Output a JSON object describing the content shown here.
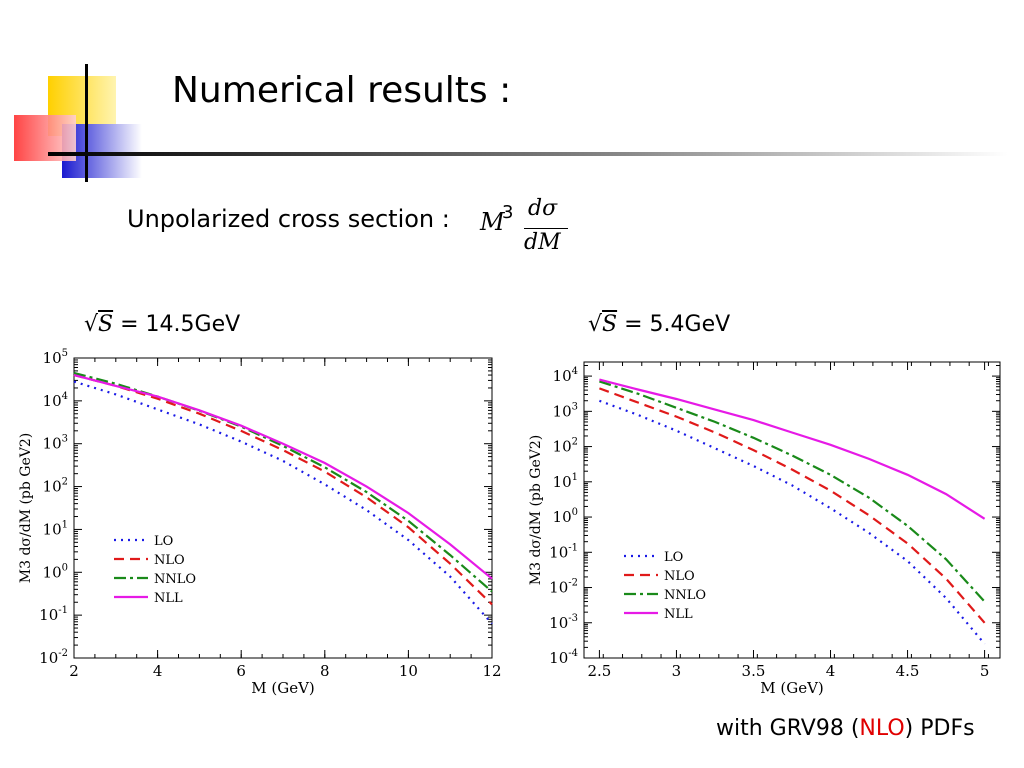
{
  "slide": {
    "title": "Numerical results :",
    "subtitle": "Unpolarized cross section :",
    "formula": {
      "prefix": "M",
      "power": "3",
      "numerator": "dσ",
      "denominator": "dM"
    },
    "footer": {
      "pre": "with GRV98 (",
      "highlight": "NLO",
      "post": ") PDFs"
    }
  },
  "colors": {
    "LO": "#1a1ae6",
    "NLO": "#e01a1a",
    "NNLO": "#1a8a1a",
    "NLL": "#e61ae6",
    "highlight": "#e00000"
  },
  "chart_data": [
    {
      "type": "line",
      "energy_label": {
        "sqrt": "S",
        "value": "= 14.5GeV"
      },
      "xlabel": "M (GeV)",
      "ylabel": "M3 dσ/dM (pb GeV2)",
      "xlim": [
        2,
        12
      ],
      "ylim_log10": [
        -2,
        5
      ],
      "y_scale": "log",
      "legend_position": "bottom-left",
      "x_ticks": [
        2,
        4,
        6,
        8,
        10,
        12
      ],
      "y_ticks_exp": [
        -2,
        -1,
        0,
        1,
        2,
        3,
        4,
        5
      ],
      "x": [
        2,
        3,
        4,
        5,
        6,
        7,
        8,
        9,
        10,
        11,
        12
      ],
      "series": [
        {
          "name": "LO",
          "style": "dotted",
          "log10_values": [
            4.45,
            4.15,
            3.8,
            3.45,
            3.05,
            2.6,
            2.05,
            1.45,
            0.75,
            -0.1,
            -1.2
          ]
        },
        {
          "name": "NLO",
          "style": "dashed",
          "log10_values": [
            4.6,
            4.35,
            4.05,
            3.7,
            3.3,
            2.85,
            2.35,
            1.75,
            1.05,
            0.2,
            -0.75
          ]
        },
        {
          "name": "NNLO",
          "style": "dashdot",
          "log10_values": [
            4.65,
            4.4,
            4.1,
            3.77,
            3.4,
            2.95,
            2.45,
            1.87,
            1.2,
            0.4,
            -0.45
          ]
        },
        {
          "name": "NLL",
          "style": "solid",
          "log10_values": [
            4.6,
            4.35,
            4.1,
            3.78,
            3.42,
            3.0,
            2.55,
            2.0,
            1.38,
            0.65,
            -0.15
          ]
        }
      ]
    },
    {
      "type": "line",
      "energy_label": {
        "sqrt": "S",
        "value": "= 5.4GeV"
      },
      "xlabel": "M (GeV)",
      "ylabel": "M3 dσ/dM (pb GeV2)",
      "xlim": [
        2.4,
        5.1
      ],
      "ylim_log10": [
        -4,
        4.4
      ],
      "y_scale": "log",
      "legend_position": "bottom-left",
      "x_ticks": [
        2.5,
        3,
        3.5,
        4,
        4.5,
        5
      ],
      "y_ticks_exp": [
        -4,
        -3,
        -2,
        -1,
        0,
        1,
        2,
        3,
        4
      ],
      "x": [
        2.5,
        2.75,
        3,
        3.25,
        3.5,
        3.75,
        4,
        4.25,
        4.5,
        4.75,
        5
      ],
      "series": [
        {
          "name": "LO",
          "style": "dotted",
          "log10_values": [
            3.3,
            2.9,
            2.45,
            1.95,
            1.45,
            0.9,
            0.25,
            -0.45,
            -1.25,
            -2.3,
            -3.6
          ]
        },
        {
          "name": "NLO",
          "style": "dashed",
          "log10_values": [
            3.65,
            3.25,
            2.85,
            2.4,
            1.9,
            1.35,
            0.75,
            0.05,
            -0.75,
            -1.75,
            -3.0
          ]
        },
        {
          "name": "NNLO",
          "style": "dashdot",
          "log10_values": [
            3.85,
            3.5,
            3.1,
            2.7,
            2.25,
            1.75,
            1.2,
            0.55,
            -0.25,
            -1.2,
            -2.4
          ]
        },
        {
          "name": "NLL",
          "style": "solid",
          "log10_values": [
            3.9,
            3.62,
            3.35,
            3.05,
            2.75,
            2.4,
            2.05,
            1.65,
            1.2,
            0.65,
            -0.05
          ]
        }
      ]
    }
  ]
}
